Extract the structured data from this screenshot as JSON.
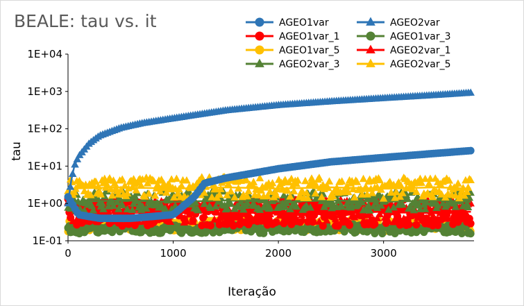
{
  "chart_data": {
    "type": "scatter",
    "title": "BEALE: tau vs. it",
    "xlabel": "Iteração",
    "ylabel": "tau",
    "xlim": [
      0,
      3860
    ],
    "ylim": [
      0.1,
      10000
    ],
    "y_scale": "log",
    "x_ticks": [
      "0",
      "1000",
      "2000",
      "3000"
    ],
    "x_tick_values": [
      0,
      1000,
      2000,
      3000
    ],
    "y_ticks": [
      "1E-01",
      "1E+00",
      "1E+01",
      "1E+02",
      "1E+03",
      "1E+04"
    ],
    "y_tick_values": [
      0.1,
      1,
      10,
      100,
      1000,
      10000
    ],
    "grid": false,
    "legend_position": "top-right",
    "series": [
      {
        "name": "AGEO1var",
        "color": "#2E75B6",
        "marker": "circle",
        "x": [
          0,
          100,
          300,
          600,
          1000,
          1200,
          1300,
          1500,
          2000,
          2500,
          3000,
          3500,
          3830
        ],
        "y": [
          1.5,
          0.5,
          0.4,
          0.4,
          0.5,
          1.5,
          3.5,
          4.8,
          8.5,
          13,
          17,
          22,
          26
        ]
      },
      {
        "name": "AGEO2var",
        "color": "#2E75B6",
        "marker": "triangle",
        "x": [
          0,
          30,
          60,
          100,
          200,
          300,
          500,
          700,
          1000,
          1500,
          2000,
          2500,
          3000,
          3500,
          3830
        ],
        "y": [
          1.0,
          4,
          10,
          18,
          40,
          65,
          105,
          140,
          190,
          310,
          430,
          540,
          660,
          800,
          920
        ]
      },
      {
        "name": "AGEO1var_1",
        "color": "#FF0000",
        "marker": "circle",
        "x": [
          0,
          500,
          1000,
          1500,
          2000,
          2500,
          3000,
          3500,
          3830
        ],
        "y": [
          0.6,
          0.55,
          0.6,
          0.55,
          0.6,
          0.55,
          0.6,
          0.55,
          0.6
        ]
      },
      {
        "name": "AGEO1var_3",
        "color": "#548235",
        "marker": "circle",
        "x": [
          0,
          500,
          1000,
          1500,
          2000,
          2500,
          3000,
          3500,
          3830
        ],
        "y": [
          0.2,
          0.22,
          0.2,
          0.22,
          0.2,
          0.22,
          0.2,
          0.22,
          0.2
        ]
      },
      {
        "name": "AGEO1var_5",
        "color": "#FFC000",
        "marker": "circle",
        "x": [
          0,
          500,
          1000,
          1500,
          2000,
          2500,
          3000,
          3500,
          3830
        ],
        "y": [
          0.25,
          0.27,
          0.25,
          0.27,
          0.25,
          0.27,
          0.25,
          0.27,
          0.25
        ]
      },
      {
        "name": "AGEO2var_1",
        "color": "#FF0000",
        "marker": "triangle",
        "x": [
          0,
          500,
          1000,
          1500,
          2000,
          2500,
          3000,
          3500,
          3830
        ],
        "y": [
          0.6,
          0.65,
          0.6,
          0.65,
          0.6,
          0.65,
          0.6,
          0.65,
          0.6
        ]
      },
      {
        "name": "AGEO2var_3",
        "color": "#548235",
        "marker": "triangle",
        "x": [
          0,
          500,
          1000,
          1500,
          2000,
          2500,
          3000,
          3500,
          3830
        ],
        "y": [
          1.1,
          1.2,
          1.1,
          1.2,
          1.1,
          1.2,
          1.1,
          1.2,
          1.1
        ]
      },
      {
        "name": "AGEO2var_5",
        "color": "#FFC000",
        "marker": "triangle",
        "x": [
          0,
          500,
          1000,
          1500,
          2000,
          2500,
          3000,
          3500,
          3830
        ],
        "y": [
          2.5,
          2.7,
          2.5,
          2.7,
          2.5,
          2.7,
          2.5,
          2.7,
          2.5
        ]
      }
    ]
  }
}
